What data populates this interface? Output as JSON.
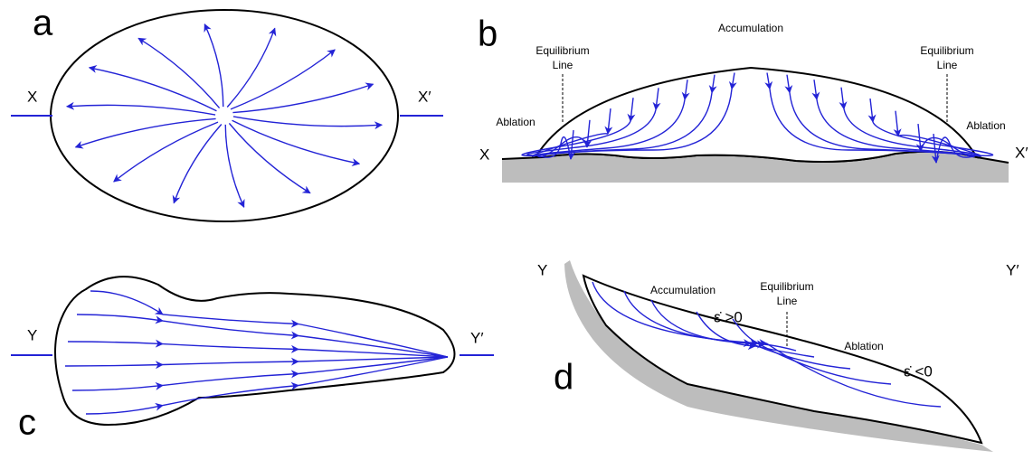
{
  "panels": [
    {
      "label": "a",
      "left_end": "X",
      "right_end": "X′"
    },
    {
      "label": "b",
      "left_end": "X",
      "right_end": "X′",
      "accumulation": "Accumulation",
      "equilibrium_left": [
        "Equilibrium",
        "Line"
      ],
      "equilibrium_right": [
        "Equilibrium",
        "Line"
      ],
      "ablation_left": "Ablation",
      "ablation_right": "Ablation"
    },
    {
      "label": "c",
      "left_end": "Y",
      "right_end": "Y′"
    },
    {
      "label": "d",
      "left_end": "Y",
      "right_end": "Y′",
      "accumulation": "Accumulation",
      "strain_positive": "ε̇ >0",
      "equilibrium": [
        "Equilibrium",
        "Line"
      ],
      "ablation": "Ablation",
      "strain_negative": "ε̇ <0"
    }
  ]
}
